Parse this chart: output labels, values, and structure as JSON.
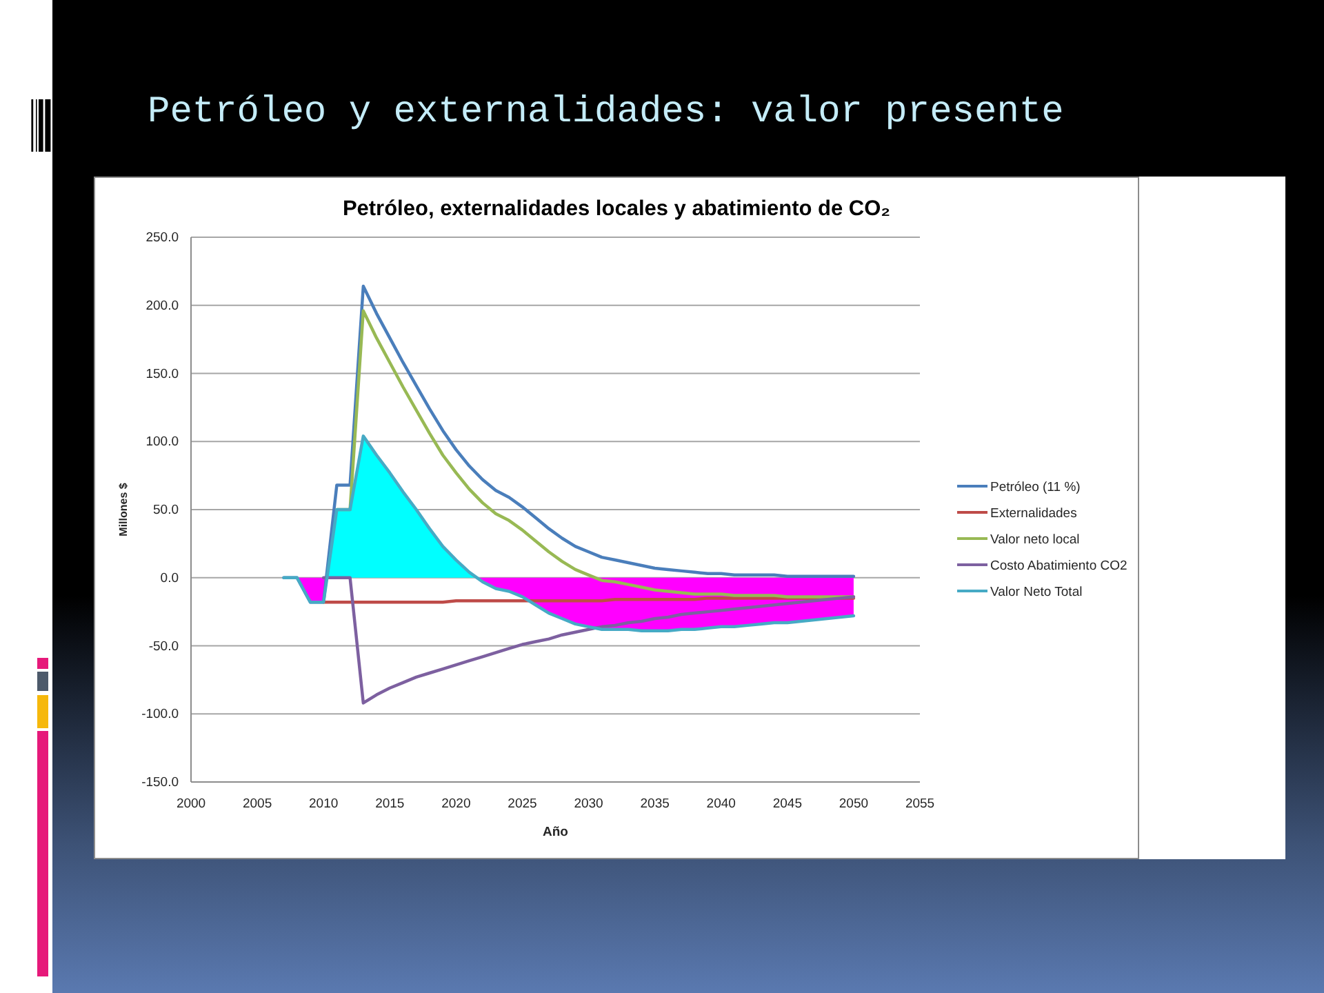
{
  "chart_data": {
    "type": "line",
    "title": "Petróleo y externalidades: valor presente",
    "subtitle": "Petróleo, externalidades locales y abatimiento de CO₂",
    "xlabel": "Año",
    "ylabel": "Millones $",
    "x": [
      2007,
      2008,
      2009,
      2010,
      2011,
      2012,
      2013,
      2014,
      2015,
      2016,
      2017,
      2018,
      2019,
      2020,
      2021,
      2022,
      2023,
      2024,
      2025,
      2026,
      2027,
      2028,
      2029,
      2030,
      2031,
      2032,
      2033,
      2034,
      2035,
      2036,
      2037,
      2038,
      2039,
      2040,
      2041,
      2042,
      2043,
      2044,
      2045,
      2046,
      2047,
      2048,
      2049,
      2050
    ],
    "xlim": [
      2000,
      2055
    ],
    "xticks": [
      2000,
      2005,
      2010,
      2015,
      2020,
      2025,
      2030,
      2035,
      2040,
      2045,
      2050,
      2055
    ],
    "ylim": [
      -150,
      250
    ],
    "yticks": [
      {
        "value": -150,
        "label": "-150.0"
      },
      {
        "value": -100,
        "label": "-100.0"
      },
      {
        "value": -50,
        "label": "-50.0"
      },
      {
        "value": 0,
        "label": "0.0"
      },
      {
        "value": 50,
        "label": "50.0"
      },
      {
        "value": 100,
        "label": "100.0"
      },
      {
        "value": 150,
        "label": "150.0"
      },
      {
        "value": 200,
        "label": "200.0"
      },
      {
        "value": 250,
        "label": "250.0"
      }
    ],
    "grid": "y",
    "legend": "right",
    "series": [
      {
        "type": "area",
        "color": "#00ffff",
        "x": [
          2010.26,
          2011,
          2012,
          2013,
          2014,
          2015,
          2016,
          2017,
          2018,
          2019,
          2020,
          2021,
          2021.57
        ],
        "values": [
          0,
          50,
          50,
          104,
          90,
          77,
          63,
          50,
          36,
          23,
          13,
          4,
          0
        ]
      },
      {
        "type": "area",
        "color": "#ff00ff",
        "x": [
          2008,
          2009,
          2010,
          2010.26,
          2016,
          2021.57,
          2022,
          2023,
          2024,
          2025,
          2026,
          2027,
          2028,
          2029,
          2030,
          2031,
          2032,
          2033,
          2034,
          2035,
          2036,
          2037,
          2038,
          2039,
          2040,
          2041,
          2042,
          2043,
          2044,
          2045,
          2046,
          2047,
          2048,
          2049,
          2050
        ],
        "values": [
          0,
          -18,
          -18,
          0,
          null,
          0,
          -3,
          -8,
          -10,
          -14,
          -20,
          -26,
          -30,
          -34,
          -36,
          -38,
          -38,
          -38,
          -39,
          -39,
          -39,
          -38,
          -38,
          -37,
          -36,
          -36,
          -35,
          -34,
          -33,
          -33,
          -32,
          -31,
          -30,
          -29,
          -28
        ]
      },
      {
        "name": "Petróleo (11 %)",
        "color": "#4a7ebb",
        "values": [
          0,
          0,
          -18,
          -18,
          68,
          68,
          214,
          194,
          176,
          158,
          141,
          124,
          108,
          94,
          82,
          72,
          64,
          59,
          52,
          44,
          36,
          29,
          23,
          19,
          15,
          13,
          11,
          9,
          7,
          6,
          5,
          4,
          3,
          3,
          2,
          2,
          2,
          2,
          1,
          1,
          1,
          1,
          1,
          1
        ]
      },
      {
        "name": "Externalidades",
        "color": "#be4b48",
        "values": [
          null,
          null,
          null,
          -18,
          -18,
          -18,
          -18,
          -18,
          -18,
          -18,
          -18,
          -18,
          -18,
          -17,
          -17,
          -17,
          -17,
          -17,
          -17,
          -17,
          -17,
          -17,
          -17,
          -17,
          -17,
          -16,
          -16,
          -16,
          -16,
          -16,
          -16,
          -16,
          -15,
          -15,
          -15,
          -15,
          -15,
          -15,
          -15,
          -15,
          -15,
          -15,
          -15,
          -15
        ]
      },
      {
        "name": "Valor neto local",
        "color": "#98b954",
        "values": [
          null,
          null,
          null,
          null,
          50,
          50,
          196,
          176,
          158,
          140,
          123,
          106,
          90,
          77,
          65,
          55,
          47,
          42,
          35,
          27,
          19,
          12,
          6,
          2,
          -2,
          -3,
          -5,
          -7,
          -9,
          -10,
          -11,
          -12,
          -12,
          -12,
          -13,
          -13,
          -13,
          -13,
          -14,
          -14,
          -14,
          -14,
          -14,
          -14
        ]
      },
      {
        "name": "Costo Abatimiento CO2",
        "color": "#7d60a0",
        "values": [
          null,
          null,
          null,
          0,
          0,
          0,
          -92,
          -86,
          -81,
          -77,
          -73,
          -70,
          -67,
          -64,
          -61,
          -58,
          -55,
          -52,
          -49,
          -47,
          -45,
          -42,
          -40,
          -38,
          -36,
          -35,
          -33,
          -32,
          -30,
          -29,
          -27,
          -26,
          -25,
          -24,
          -23,
          -22,
          -21,
          -20,
          -19,
          -18,
          -17,
          -16,
          -15,
          -14
        ]
      },
      {
        "name": "Valor Neto Total",
        "color": "#46aac5",
        "values": [
          0,
          0,
          -18,
          -18,
          50,
          50,
          104,
          90,
          77,
          63,
          50,
          36,
          23,
          13,
          4,
          -3,
          -8,
          -10,
          -14,
          -20,
          -26,
          -30,
          -34,
          -36,
          -38,
          -38,
          -38,
          -39,
          -39,
          -39,
          -38,
          -38,
          -37,
          -36,
          -36,
          -35,
          -34,
          -33,
          -33,
          -32,
          -31,
          -30,
          -29,
          -28
        ]
      }
    ]
  }
}
